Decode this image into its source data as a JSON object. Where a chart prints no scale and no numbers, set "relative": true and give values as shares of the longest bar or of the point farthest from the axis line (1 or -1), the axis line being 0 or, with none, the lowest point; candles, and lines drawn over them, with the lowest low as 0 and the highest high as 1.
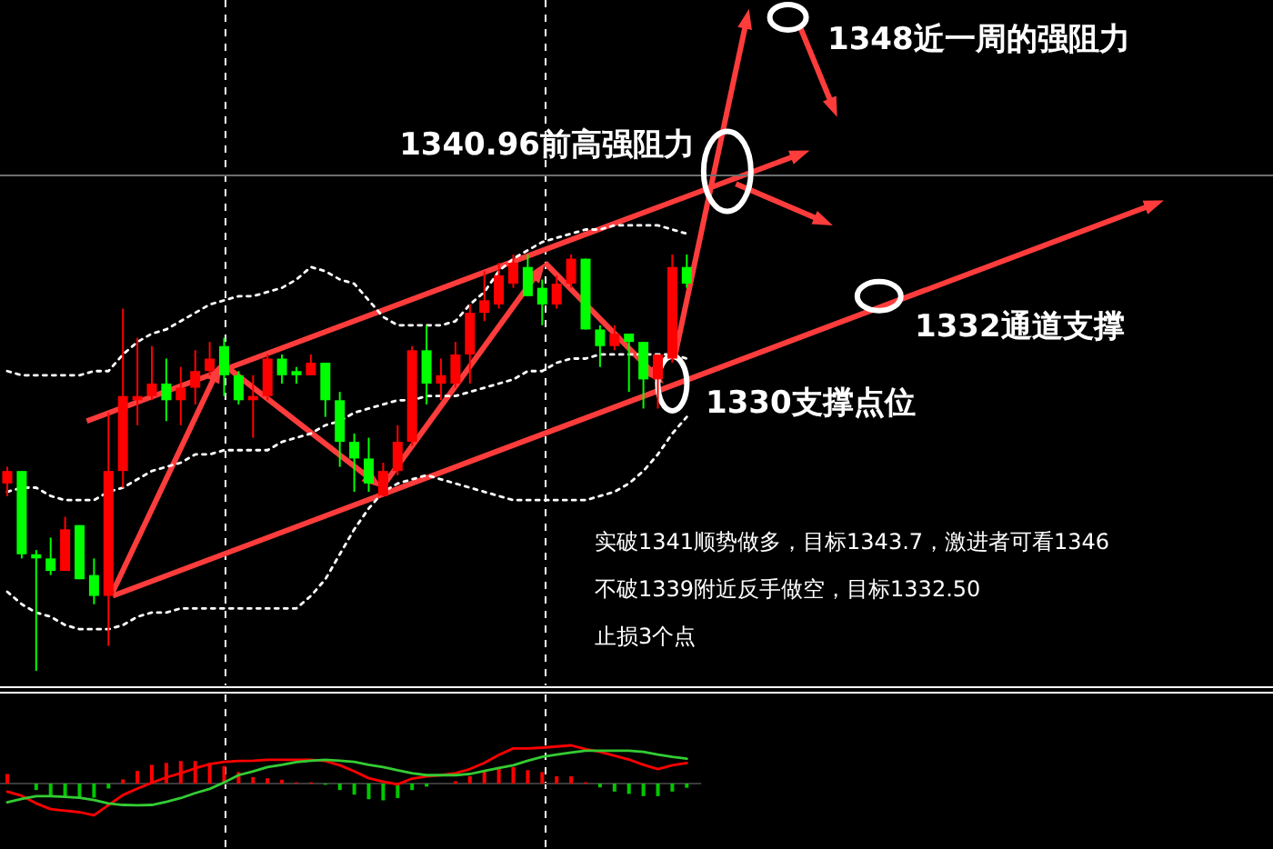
{
  "chart_data": [
    {
      "type": "candlestick",
      "relative": true,
      "categories": [
        null,
        null,
        null,
        null,
        null,
        null,
        null,
        null,
        null,
        null,
        null,
        null,
        null,
        null,
        null,
        null,
        null,
        null,
        null,
        null,
        null,
        null,
        null,
        null,
        null,
        null,
        null,
        null,
        null,
        null,
        null,
        null,
        null,
        null,
        null,
        null,
        null,
        null,
        null,
        null,
        null,
        null,
        null,
        null,
        null,
        null,
        null,
        null
      ],
      "ohlc": [
        [
          0.45,
          0.49,
          0.42,
          0.48
        ],
        [
          0.48,
          0.48,
          0.27,
          0.28
        ],
        [
          0.28,
          0.29,
          0,
          0.27
        ],
        [
          0.27,
          0.32,
          0.23,
          0.24
        ],
        [
          0.24,
          0.37,
          0.24,
          0.34
        ],
        [
          0.35,
          0.35,
          0.22,
          0.22
        ],
        [
          0.23,
          0.27,
          0.16,
          0.18
        ],
        [
          0.18,
          0.62,
          0.06,
          0.48
        ],
        [
          0.48,
          0.87,
          0.44,
          0.66
        ],
        [
          0.65,
          0.8,
          0.59,
          0.66
        ],
        [
          0.66,
          0.78,
          0.65,
          0.69
        ],
        [
          0.69,
          0.75,
          0.6,
          0.65
        ],
        [
          0.65,
          0.73,
          0.59,
          0.68
        ],
        [
          0.68,
          0.77,
          0.64,
          0.72
        ],
        [
          0.72,
          0.79,
          0.71,
          0.75
        ],
        [
          0.78,
          0.8,
          0.66,
          0.71
        ],
        [
          0.71,
          0.72,
          0.64,
          0.65
        ],
        [
          0.65,
          0.71,
          0.56,
          0.66
        ],
        [
          0.66,
          0.76,
          0.65,
          0.75
        ],
        [
          0.75,
          0.76,
          0.69,
          0.71
        ],
        [
          0.72,
          0.73,
          0.69,
          0.71
        ],
        [
          0.71,
          0.76,
          0.71,
          0.74
        ],
        [
          0.74,
          0.74,
          0.61,
          0.65
        ],
        [
          0.65,
          0.67,
          0.49,
          0.55
        ],
        [
          0.55,
          0.57,
          0.43,
          0.51
        ],
        [
          0.51,
          0.56,
          0.43,
          0.45
        ],
        [
          0.42,
          0.5,
          0.42,
          0.48
        ],
        [
          0.48,
          0.59,
          0.47,
          0.55
        ],
        [
          0.55,
          0.78,
          0.54,
          0.77
        ],
        [
          0.77,
          0.83,
          0.64,
          0.69
        ],
        [
          0.69,
          0.75,
          0.65,
          0.71
        ],
        [
          0.69,
          0.79,
          0.68,
          0.76
        ],
        [
          0.76,
          0.88,
          0.69,
          0.86
        ],
        [
          0.86,
          0.96,
          0.84,
          0.89
        ],
        [
          0.88,
          0.98,
          0.87,
          0.95
        ],
        [
          0.93,
          1,
          0.92,
          0.98
        ],
        [
          0.97,
          1,
          0.9,
          0.9
        ],
        [
          0.92,
          0.94,
          0.83,
          0.88
        ],
        [
          0.88,
          0.95,
          0.87,
          0.93
        ],
        [
          0.93,
          1,
          0.92,
          0.99
        ],
        [
          0.99,
          0.99,
          0.82,
          0.82
        ],
        [
          0.82,
          0.83,
          0.73,
          0.78
        ],
        [
          0.78,
          0.83,
          0.77,
          0.81
        ],
        [
          0.81,
          0.81,
          0.67,
          0.79
        ],
        [
          0.79,
          0.79,
          0.63,
          0.7
        ],
        [
          0.7,
          0.76,
          0.63,
          0.76
        ],
        [
          0.75,
          1,
          0.74,
          0.97
        ],
        [
          0.97,
          1,
          0.92,
          0.93
        ]
      ],
      "colors": [
        "#ff0000",
        "#00ff00",
        "#00ff00",
        "#00ff00",
        "#ff0000",
        "#00ff00",
        "#00ff00",
        "#ff0000",
        "#ff0000",
        "#ff0000",
        "#ff0000",
        "#00ff00",
        "#ff0000",
        "#ff0000",
        "#ff0000",
        "#00ff00",
        "#00ff00",
        "#ff0000",
        "#ff0000",
        "#00ff00",
        "#00ff00",
        "#ff0000",
        "#00ff00",
        "#00ff00",
        "#00ff00",
        "#00ff00",
        "#ff0000",
        "#ff0000",
        "#ff0000",
        "#00ff00",
        "#ff0000",
        "#ff0000",
        "#ff0000",
        "#ff0000",
        "#ff0000",
        "#ff0000",
        "#00ff00",
        "#00ff00",
        "#ff0000",
        "#ff0000",
        "#00ff00",
        "#00ff00",
        "#ff0000",
        "#00ff00",
        "#00ff00",
        "#ff0000",
        "#ff0000",
        "#00ff00"
      ],
      "series": [
        {
          "type": "line",
          "color": "#ffffff",
          "line_style": "dotted",
          "values": [
            0.72,
            0.71,
            0.71,
            0.71,
            0.71,
            0.71,
            0.72,
            0.72,
            0.76,
            0.79,
            0.81,
            0.82,
            0.84,
            0.86,
            0.88,
            0.89,
            0.9,
            0.9,
            0.91,
            0.92,
            0.94,
            0.97,
            0.96,
            0.94,
            0.93,
            0.89,
            0.85,
            0.83,
            0.83,
            0.83,
            0.83,
            0.84,
            0.88,
            0.91,
            0.96,
            0.99,
            1.01,
            1.03,
            1.04,
            1.05,
            1.06,
            1.06,
            1.07,
            1.07,
            1.07,
            1.07,
            1.06,
            1.05
          ]
        },
        {
          "type": "line",
          "color": "#ffffff",
          "line_style": "dotted",
          "values": [
            0.43,
            0.44,
            0.44,
            0.42,
            0.41,
            0.41,
            0.41,
            0.43,
            0.44,
            0.46,
            0.48,
            0.49,
            0.5,
            0.52,
            0.52,
            0.53,
            0.53,
            0.53,
            0.53,
            0.55,
            0.56,
            0.57,
            0.59,
            0.6,
            0.62,
            0.63,
            0.64,
            0.65,
            0.65,
            0.66,
            0.66,
            0.66,
            0.67,
            0.68,
            0.69,
            0.7,
            0.72,
            0.72,
            0.74,
            0.75,
            0.75,
            0.76,
            0.76,
            0.76,
            0.76,
            0.76,
            0.76,
            0.75
          ]
        },
        {
          "type": "line",
          "color": "#ffffff",
          "line_style": "dotted",
          "values": [
            0.19,
            0.16,
            0.14,
            0.13,
            0.11,
            0.1,
            0.1,
            0.1,
            0.11,
            0.13,
            0.14,
            0.14,
            0.15,
            0.15,
            0.15,
            0.15,
            0.15,
            0.15,
            0.15,
            0.15,
            0.15,
            0.18,
            0.22,
            0.28,
            0.34,
            0.39,
            0.43,
            0.45,
            0.46,
            0.47,
            0.46,
            0.45,
            0.44,
            0.43,
            0.42,
            0.41,
            0.41,
            0.41,
            0.41,
            0.41,
            0.41,
            0.42,
            0.43,
            0.45,
            0.48,
            0.52,
            0.57,
            0.61
          ]
        }
      ],
      "ref_lines": [
        {
          "axis": "y",
          "value": 1.19,
          "color": "#6e6e6e",
          "line_style": "solid"
        }
      ],
      "annotations": [
        "1348近一周的强阻力",
        "1340.96前高强阻力",
        "1332通道支撑",
        "1330支撑点位",
        "实破1341顺势做多，目标1343.7，激进者可看1346",
        "不破1339附近反手做空，目标1332.50",
        "止损3个点"
      ]
    },
    {
      "type": "line",
      "relative": true,
      "categories": [
        null,
        null,
        null,
        null,
        null,
        null,
        null,
        null,
        null,
        null,
        null,
        null,
        null,
        null,
        null,
        null,
        null,
        null,
        null,
        null,
        null,
        null,
        null,
        null,
        null,
        null,
        null,
        null,
        null,
        null,
        null,
        null,
        null,
        null,
        null,
        null,
        null,
        null,
        null,
        null,
        null,
        null,
        null,
        null,
        null,
        null,
        null,
        null
      ],
      "series": [
        {
          "type": "bar",
          "colors": [
            "#ff0000",
            "#ff0000",
            "#00c800",
            "#00c800",
            "#00c800",
            "#00c800",
            "#00c800",
            "#00c800",
            "#ff0000",
            "#ff0000",
            "#ff0000",
            "#ff0000",
            "#ff0000",
            "#ff0000",
            "#ff0000",
            "#ff0000",
            "#ff0000",
            "#ff0000",
            "#ff0000",
            "#ff0000",
            "#ff0000",
            "#ff0000",
            "#00c800",
            "#00c800",
            "#00c800",
            "#00c800",
            "#00c800",
            "#00c800",
            "#00c800",
            "#00c800",
            "#ff0000",
            "#ff0000",
            "#ff0000",
            "#ff0000",
            "#ff0000",
            "#ff0000",
            "#ff0000",
            "#ff0000",
            "#ff0000",
            "#ff0000",
            "#ff0000",
            "#00c800",
            "#00c800",
            "#00c800",
            "#00c800",
            "#00c800",
            "#00c800",
            "#00c800"
          ],
          "values": [
            0.25,
            0,
            -0.17,
            -0.33,
            -0.33,
            -0.37,
            -0.37,
            -0.13,
            0.11,
            0.33,
            0.49,
            0.54,
            0.59,
            0.59,
            0.54,
            0.46,
            0.3,
            0.17,
            0.14,
            0.1,
            0.03,
            0.03,
            -0.03,
            -0.17,
            -0.29,
            -0.41,
            -0.44,
            -0.38,
            -0.17,
            -0.08,
            0,
            0.06,
            0.19,
            0.33,
            0.43,
            0.43,
            0.35,
            0.3,
            0.19,
            0.19,
            0.03,
            -0.1,
            -0.21,
            -0.27,
            -0.33,
            -0.33,
            -0.21,
            -0.11
          ]
        },
        {
          "type": "line",
          "color": "#ff0000",
          "values": [
            -0.21,
            -0.32,
            -0.52,
            -0.67,
            -0.71,
            -0.75,
            -0.83,
            -0.56,
            -0.3,
            -0.13,
            0.02,
            0.16,
            0.27,
            0.4,
            0.51,
            0.57,
            0.59,
            0.6,
            0.62,
            0.62,
            0.62,
            0.62,
            0.59,
            0.48,
            0.32,
            0.14,
            0.05,
            -0.02,
            0.13,
            0.19,
            0.22,
            0.27,
            0.38,
            0.54,
            0.75,
            0.92,
            0.92,
            0.94,
            0.97,
            1,
            0.9,
            0.83,
            0.73,
            0.63,
            0.49,
            0.38,
            0.48,
            0.54
          ]
        },
        {
          "type": "line",
          "color": "#33cc33",
          "values": [
            -0.49,
            -0.4,
            -0.33,
            -0.33,
            -0.35,
            -0.37,
            -0.43,
            -0.52,
            -0.56,
            -0.57,
            -0.56,
            -0.48,
            -0.38,
            -0.25,
            -0.14,
            0.03,
            0.22,
            0.32,
            0.43,
            0.49,
            0.56,
            0.6,
            0.62,
            0.6,
            0.57,
            0.49,
            0.43,
            0.35,
            0.27,
            0.22,
            0.22,
            0.22,
            0.25,
            0.33,
            0.41,
            0.48,
            0.6,
            0.7,
            0.76,
            0.81,
            0.86,
            0.86,
            0.86,
            0.86,
            0.83,
            0.76,
            0.7,
            0.65
          ]
        }
      ]
    }
  ]
}
